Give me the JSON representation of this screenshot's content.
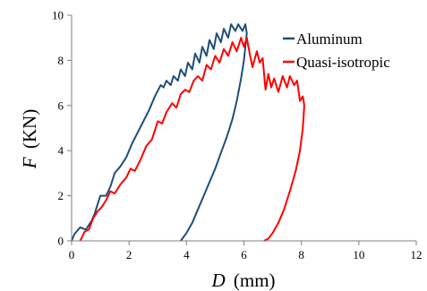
{
  "chart_data": {
    "type": "line",
    "title": "",
    "xlabel": {
      "symbol": "D",
      "unit": "(mm)"
    },
    "ylabel": {
      "symbol": "F",
      "unit": "(KN)"
    },
    "xlim": [
      0,
      12
    ],
    "ylim": [
      0,
      10
    ],
    "xticks": [
      0,
      2,
      4,
      6,
      8,
      10,
      12
    ],
    "yticks": [
      0,
      2,
      4,
      6,
      8,
      10
    ],
    "grid": false,
    "legend_position": "top-right",
    "series": [
      {
        "name": "Aluminum",
        "color": "#1f4e79",
        "points": [
          [
            0.0,
            0.0
          ],
          [
            0.1,
            0.3
          ],
          [
            0.3,
            0.6
          ],
          [
            0.5,
            0.5
          ],
          [
            0.7,
            0.9
          ],
          [
            0.8,
            1.2
          ],
          [
            0.9,
            1.6
          ],
          [
            1.0,
            2.0
          ],
          [
            1.2,
            2.0
          ],
          [
            1.35,
            2.4
          ],
          [
            1.5,
            3.0
          ],
          [
            1.7,
            3.3
          ],
          [
            1.9,
            3.7
          ],
          [
            2.1,
            4.3
          ],
          [
            2.3,
            4.8
          ],
          [
            2.5,
            5.3
          ],
          [
            2.7,
            5.8
          ],
          [
            2.9,
            6.4
          ],
          [
            3.1,
            6.9
          ],
          [
            3.2,
            6.8
          ],
          [
            3.3,
            7.1
          ],
          [
            3.45,
            6.9
          ],
          [
            3.55,
            7.3
          ],
          [
            3.7,
            7.1
          ],
          [
            3.8,
            7.6
          ],
          [
            3.95,
            7.3
          ],
          [
            4.05,
            7.9
          ],
          [
            4.2,
            7.6
          ],
          [
            4.3,
            8.3
          ],
          [
            4.45,
            7.9
          ],
          [
            4.55,
            8.6
          ],
          [
            4.7,
            8.2
          ],
          [
            4.8,
            8.9
          ],
          [
            4.95,
            8.5
          ],
          [
            5.05,
            9.2
          ],
          [
            5.2,
            8.8
          ],
          [
            5.3,
            9.4
          ],
          [
            5.45,
            9.0
          ],
          [
            5.55,
            9.6
          ],
          [
            5.7,
            9.3
          ],
          [
            5.8,
            9.6
          ],
          [
            5.95,
            9.3
          ],
          [
            6.05,
            9.6
          ],
          [
            6.1,
            9.2
          ],
          [
            6.0,
            8.0
          ],
          [
            5.9,
            7.2
          ],
          [
            5.75,
            6.2
          ],
          [
            5.6,
            5.4
          ],
          [
            5.4,
            4.6
          ],
          [
            5.2,
            3.9
          ],
          [
            5.0,
            3.2
          ],
          [
            4.8,
            2.6
          ],
          [
            4.6,
            2.0
          ],
          [
            4.4,
            1.4
          ],
          [
            4.2,
            0.8
          ],
          [
            4.0,
            0.35
          ],
          [
            3.8,
            0.0
          ]
        ]
      },
      {
        "name": "Quasi-isotropic",
        "color": "#ff0000",
        "points": [
          [
            0.3,
            0.0
          ],
          [
            0.45,
            0.4
          ],
          [
            0.6,
            0.5
          ],
          [
            0.75,
            1.0
          ],
          [
            0.9,
            1.3
          ],
          [
            1.05,
            1.5
          ],
          [
            1.2,
            1.8
          ],
          [
            1.35,
            2.2
          ],
          [
            1.5,
            2.1
          ],
          [
            1.7,
            2.5
          ],
          [
            1.9,
            2.8
          ],
          [
            2.05,
            3.2
          ],
          [
            2.2,
            3.1
          ],
          [
            2.4,
            3.6
          ],
          [
            2.6,
            4.2
          ],
          [
            2.8,
            4.5
          ],
          [
            3.0,
            5.3
          ],
          [
            3.15,
            5.2
          ],
          [
            3.3,
            5.7
          ],
          [
            3.5,
            6.1
          ],
          [
            3.65,
            5.9
          ],
          [
            3.8,
            6.5
          ],
          [
            3.95,
            6.7
          ],
          [
            4.1,
            6.6
          ],
          [
            4.25,
            7.1
          ],
          [
            4.4,
            7.3
          ],
          [
            4.55,
            7.1
          ],
          [
            4.7,
            7.8
          ],
          [
            4.85,
            7.6
          ],
          [
            5.0,
            8.2
          ],
          [
            5.15,
            7.9
          ],
          [
            5.3,
            8.5
          ],
          [
            5.45,
            8.2
          ],
          [
            5.6,
            8.8
          ],
          [
            5.75,
            8.4
          ],
          [
            5.9,
            9.0
          ],
          [
            6.0,
            8.6
          ],
          [
            6.1,
            9.0
          ],
          [
            6.2,
            8.3
          ],
          [
            6.3,
            7.7
          ],
          [
            6.45,
            8.4
          ],
          [
            6.55,
            7.9
          ],
          [
            6.65,
            8.1
          ],
          [
            6.75,
            6.7
          ],
          [
            6.85,
            7.4
          ],
          [
            6.95,
            6.8
          ],
          [
            7.05,
            7.2
          ],
          [
            7.2,
            6.6
          ],
          [
            7.35,
            7.3
          ],
          [
            7.5,
            6.8
          ],
          [
            7.6,
            7.3
          ],
          [
            7.75,
            6.9
          ],
          [
            7.85,
            7.1
          ],
          [
            7.95,
            6.2
          ],
          [
            8.05,
            6.4
          ],
          [
            8.1,
            6.0
          ],
          [
            8.05,
            5.0
          ],
          [
            7.95,
            4.0
          ],
          [
            7.8,
            3.1
          ],
          [
            7.6,
            2.2
          ],
          [
            7.4,
            1.4
          ],
          [
            7.2,
            0.8
          ],
          [
            7.0,
            0.35
          ],
          [
            6.85,
            0.1
          ],
          [
            6.7,
            0.0
          ]
        ]
      }
    ]
  }
}
